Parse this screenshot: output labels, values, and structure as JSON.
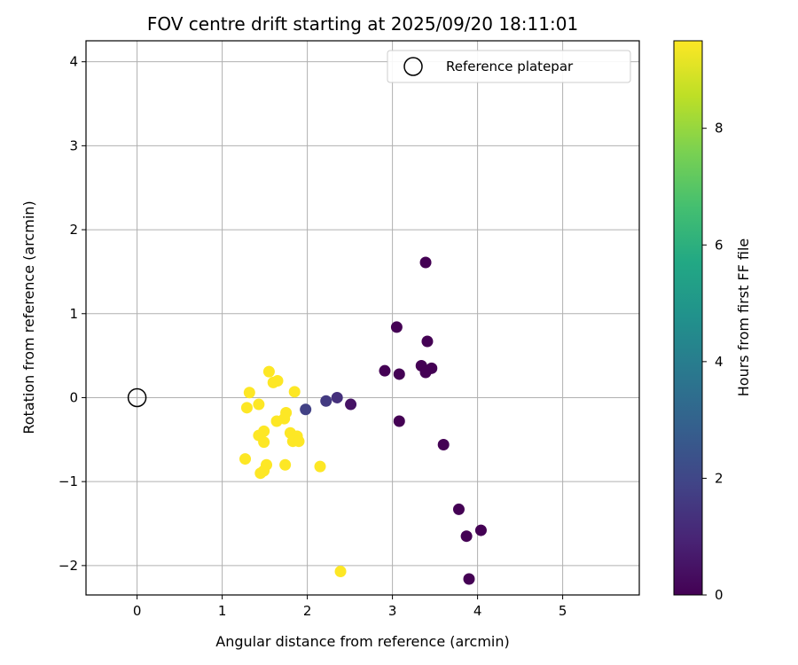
{
  "chart_data": {
    "type": "scatter",
    "title": "FOV centre drift starting at 2025/09/20 18:11:01",
    "xlabel": "Angular distance from reference (arcmin)",
    "ylabel": "Rotation from reference (arcmin)",
    "xlim": [
      -0.6,
      5.9
    ],
    "ylim": [
      -2.35,
      4.25
    ],
    "x_ticks": [
      "0",
      "1",
      "2",
      "3",
      "4",
      "5"
    ],
    "y_ticks": [
      "−2",
      "−1",
      "0",
      "1",
      "2",
      "3",
      "4"
    ],
    "grid": true,
    "legend": {
      "position": "top-right",
      "entries": [
        "Reference platepar"
      ]
    },
    "reference_point": {
      "x": 0,
      "y": 0
    },
    "colorbar": {
      "label": "Hours from first FF file",
      "colormap": "viridis",
      "range": [
        0,
        9.5
      ],
      "ticks": [
        "0",
        "2",
        "4",
        "6",
        "8"
      ]
    },
    "points": [
      {
        "x": 3.39,
        "y": 1.61,
        "hours": 0.0
      },
      {
        "x": 3.05,
        "y": 0.84,
        "hours": 0.0
      },
      {
        "x": 3.41,
        "y": 0.67,
        "hours": 0.0
      },
      {
        "x": 2.91,
        "y": 0.32,
        "hours": 0.0
      },
      {
        "x": 3.08,
        "y": 0.28,
        "hours": 0.0
      },
      {
        "x": 3.34,
        "y": 0.38,
        "hours": 0.0
      },
      {
        "x": 3.46,
        "y": 0.35,
        "hours": 0.0
      },
      {
        "x": 3.39,
        "y": 0.3,
        "hours": 0.0
      },
      {
        "x": 2.51,
        "y": -0.08,
        "hours": 0.5
      },
      {
        "x": 3.08,
        "y": -0.28,
        "hours": 0.0
      },
      {
        "x": 3.6,
        "y": -0.56,
        "hours": 0.0
      },
      {
        "x": 3.78,
        "y": -1.33,
        "hours": 0.0
      },
      {
        "x": 3.87,
        "y": -1.65,
        "hours": 0.0
      },
      {
        "x": 4.04,
        "y": -1.58,
        "hours": 0.0
      },
      {
        "x": 3.9,
        "y": -2.16,
        "hours": 0.0
      },
      {
        "x": 2.35,
        "y": 0.0,
        "hours": 1.3
      },
      {
        "x": 2.22,
        "y": -0.04,
        "hours": 1.6
      },
      {
        "x": 1.98,
        "y": -0.14,
        "hours": 1.8
      },
      {
        "x": 1.55,
        "y": 0.31,
        "hours": 9.5
      },
      {
        "x": 1.65,
        "y": 0.2,
        "hours": 9.5
      },
      {
        "x": 1.6,
        "y": 0.18,
        "hours": 9.5
      },
      {
        "x": 1.32,
        "y": 0.06,
        "hours": 9.5
      },
      {
        "x": 1.85,
        "y": 0.07,
        "hours": 9.5
      },
      {
        "x": 1.29,
        "y": -0.12,
        "hours": 9.5
      },
      {
        "x": 1.43,
        "y": -0.08,
        "hours": 9.5
      },
      {
        "x": 1.75,
        "y": -0.18,
        "hours": 9.5
      },
      {
        "x": 1.73,
        "y": -0.25,
        "hours": 9.5
      },
      {
        "x": 1.64,
        "y": -0.28,
        "hours": 9.5
      },
      {
        "x": 1.49,
        "y": -0.4,
        "hours": 9.5
      },
      {
        "x": 1.43,
        "y": -0.45,
        "hours": 9.5
      },
      {
        "x": 1.8,
        "y": -0.42,
        "hours": 9.5
      },
      {
        "x": 1.88,
        "y": -0.46,
        "hours": 9.5
      },
      {
        "x": 1.83,
        "y": -0.52,
        "hours": 9.5
      },
      {
        "x": 1.9,
        "y": -0.52,
        "hours": 9.5
      },
      {
        "x": 1.49,
        "y": -0.53,
        "hours": 9.5
      },
      {
        "x": 1.27,
        "y": -0.73,
        "hours": 9.5
      },
      {
        "x": 1.52,
        "y": -0.8,
        "hours": 9.5
      },
      {
        "x": 1.74,
        "y": -0.8,
        "hours": 9.5
      },
      {
        "x": 2.15,
        "y": -0.82,
        "hours": 9.5
      },
      {
        "x": 1.49,
        "y": -0.87,
        "hours": 9.5
      },
      {
        "x": 1.45,
        "y": -0.9,
        "hours": 9.5
      },
      {
        "x": 2.39,
        "y": -2.07,
        "hours": 9.5
      }
    ]
  }
}
